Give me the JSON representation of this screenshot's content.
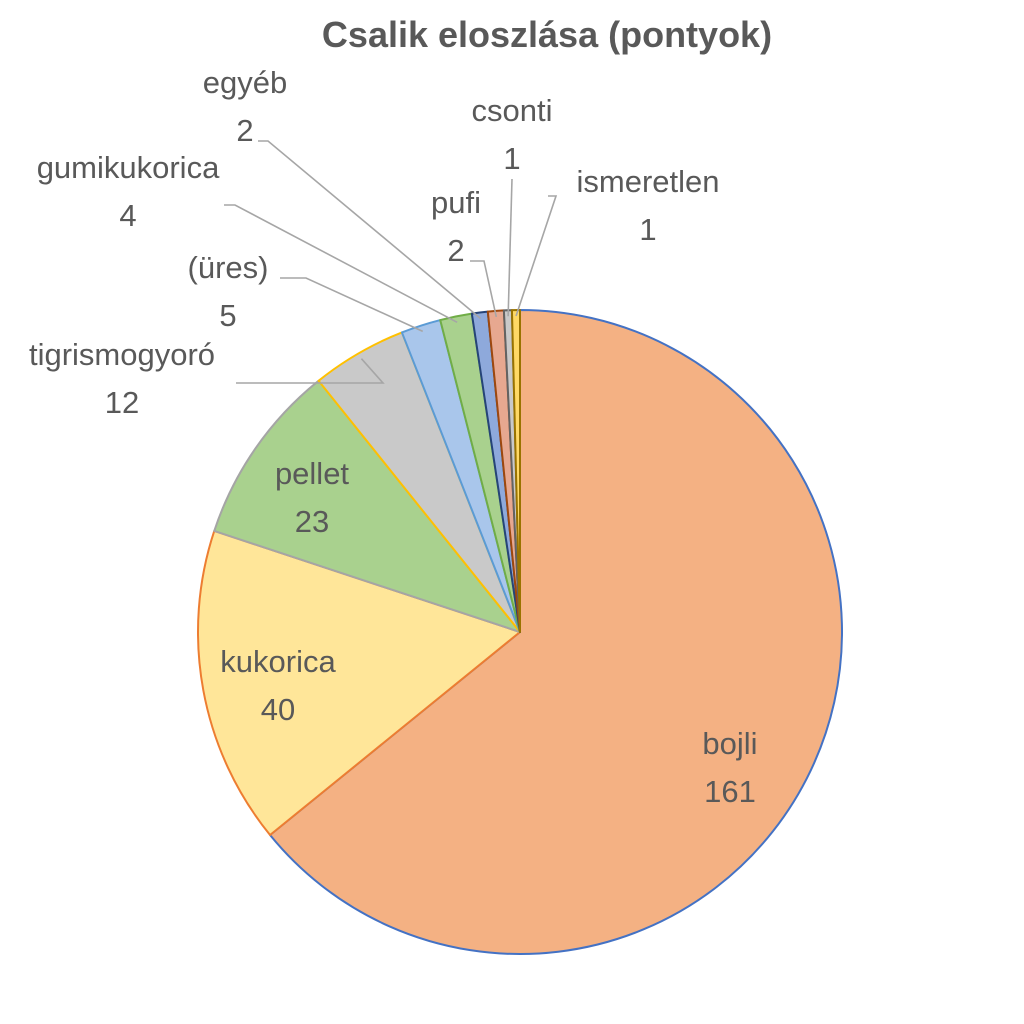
{
  "chart_data": {
    "type": "pie",
    "title": "Csalik eloszlása (pontyok)",
    "slices": [
      {
        "label": "bojli",
        "value": 161,
        "fill": "#F4B183",
        "stroke": "#4472C4"
      },
      {
        "label": "kukorica",
        "value": 40,
        "fill": "#FFE699",
        "stroke": "#ED7D31"
      },
      {
        "label": "pellet",
        "value": 23,
        "fill": "#A9D18E",
        "stroke": "#A5A5A5"
      },
      {
        "label": "tigrismogyoró",
        "value": 12,
        "fill": "#C9C9C9",
        "stroke": "#FFC000"
      },
      {
        "label": "(üres)",
        "value": 5,
        "fill": "#A9C6EB",
        "stroke": "#5B9BD5"
      },
      {
        "label": "gumikukorica",
        "value": 4,
        "fill": "#A9D18E",
        "stroke": "#70AD47"
      },
      {
        "label": "egyéb",
        "value": 2,
        "fill": "#8EA9DB",
        "stroke": "#264478"
      },
      {
        "label": "pufi",
        "value": 2,
        "fill": "#E7A890",
        "stroke": "#9E480E"
      },
      {
        "label": "csonti",
        "value": 1,
        "fill": "#C9C9C9",
        "stroke": "#636363"
      },
      {
        "label": "ismeretlen",
        "value": 1,
        "fill": "#FFD966",
        "stroke": "#997300"
      }
    ],
    "legend": "none",
    "labels": "category and value"
  }
}
